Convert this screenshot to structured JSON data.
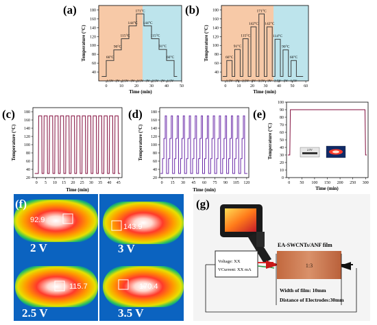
{
  "panels": {
    "a": {
      "label": "(a)"
    },
    "b": {
      "label": "(b)"
    },
    "c": {
      "label": "(c)"
    },
    "d": {
      "label": "(d)"
    },
    "e": {
      "label": "(e)"
    },
    "f": {
      "label": "(f)"
    },
    "g": {
      "label": "(g)"
    }
  },
  "chart_data": [
    {
      "panel": "a",
      "type": "line",
      "xlabel": "Time (min)",
      "ylabel": "Temperature (°C)",
      "xlim": [
        -5,
        50
      ],
      "ylim": [
        20,
        190
      ],
      "xticks": [
        0,
        10,
        20,
        30,
        40,
        50
      ],
      "yticks": [
        40,
        60,
        80,
        100,
        120,
        140,
        160,
        180
      ],
      "steps": [
        {
          "t0": 0,
          "t1": 5,
          "temp": 66,
          "label": "66°C",
          "volt": "1.5V"
        },
        {
          "t0": 5,
          "t1": 10,
          "temp": 90,
          "label": "90°C",
          "volt": "2V"
        },
        {
          "t0": 10,
          "t1": 15,
          "temp": 115,
          "label": "115°C",
          "volt": "2.5V"
        },
        {
          "t0": 15,
          "t1": 20,
          "temp": 144,
          "label": "144°C",
          "volt": "3V"
        },
        {
          "t0": 20,
          "t1": 25,
          "temp": 171,
          "label": "171°C",
          "volt": "3.5V"
        },
        {
          "t0": 25,
          "t1": 30,
          "temp": 144,
          "label": "144°C",
          "volt": "3V"
        },
        {
          "t0": 30,
          "t1": 35,
          "temp": 115,
          "label": "115°C",
          "volt": "2.5V"
        },
        {
          "t0": 35,
          "t1": 40,
          "temp": 91,
          "label": "91°C",
          "volt": "2V"
        },
        {
          "t0": 40,
          "t1": 45,
          "temp": 66,
          "label": "66°C",
          "volt": "1.5V"
        }
      ],
      "baseline": 30
    },
    {
      "panel": "b",
      "type": "line",
      "xlabel": "Time (min)",
      "ylabel": "Temperature (°C)",
      "xlim": [
        -3,
        62
      ],
      "ylim": [
        20,
        190
      ],
      "xticks": [
        0,
        10,
        20,
        30,
        40,
        50,
        60
      ],
      "yticks": [
        40,
        60,
        80,
        100,
        120,
        140,
        160,
        180
      ],
      "pulses": [
        {
          "t0": 1,
          "t1": 5,
          "temp": 66,
          "label": "66°C",
          "volt": "1.5V"
        },
        {
          "t0": 7,
          "t1": 11,
          "temp": 91,
          "label": "91°C",
          "volt": "2V"
        },
        {
          "t0": 13,
          "t1": 17,
          "temp": 115,
          "label": "115°C",
          "volt": "2.5V"
        },
        {
          "t0": 19,
          "t1": 23,
          "temp": 142,
          "label": "142°C",
          "volt": "3V"
        },
        {
          "t0": 25,
          "t1": 29,
          "temp": 171,
          "label": "171°C",
          "volt": "3.5V"
        },
        {
          "t0": 31,
          "t1": 35,
          "temp": 142,
          "label": "142°C",
          "volt": "3V"
        },
        {
          "t0": 37,
          "t1": 41,
          "temp": 114,
          "label": "114°C",
          "volt": "2.5V"
        },
        {
          "t0": 43,
          "t1": 47,
          "temp": 90,
          "label": "90°C",
          "volt": "2V"
        },
        {
          "t0": 49,
          "t1": 53,
          "temp": 66,
          "label": "66°C",
          "volt": "1.5V"
        }
      ],
      "baseline": 30
    },
    {
      "panel": "c",
      "type": "line",
      "xlabel": "Time (min)",
      "ylabel": "Temperature (°C)",
      "xlim": [
        -2,
        47
      ],
      "ylim": [
        20,
        190
      ],
      "xticks": [
        0,
        5,
        10,
        15,
        20,
        25,
        30,
        35,
        40,
        45
      ],
      "yticks": [
        20,
        40,
        60,
        80,
        100,
        120,
        140,
        160,
        180
      ],
      "cycle": {
        "count": 15,
        "start": 1,
        "period": 3,
        "high": 170,
        "low": 30
      }
    },
    {
      "panel": "d",
      "type": "line",
      "xlabel": "Time (min)",
      "ylabel": "Temperature (°C)",
      "xlim": [
        -3,
        123
      ],
      "ylim": [
        20,
        190
      ],
      "xticks": [
        0,
        15,
        30,
        45,
        60,
        75,
        90,
        105,
        120
      ],
      "yticks": [
        20,
        40,
        60,
        80,
        100,
        120,
        140,
        160,
        180
      ],
      "cycle": {
        "count": 14,
        "start": 1,
        "period": 8.5,
        "levels": [
          66,
          115,
          170
        ],
        "low": 30
      }
    },
    {
      "panel": "e",
      "type": "line",
      "xlabel": "Time (min)",
      "ylabel": "Temperature (°C)",
      "xlim": [
        -10,
        310
      ],
      "ylim": [
        0,
        100
      ],
      "xticks": [
        0,
        50,
        100,
        150,
        200,
        250,
        300
      ],
      "yticks": [
        0,
        10,
        20,
        30,
        40,
        50,
        60,
        70,
        80,
        90,
        100
      ],
      "plateau": {
        "t0": 5,
        "t1": 298,
        "temp": 90,
        "low": 30
      },
      "inset_label": "2.5V"
    }
  ],
  "thermal": {
    "tiles": [
      {
        "temp": "92.9",
        "voltage": "2 V"
      },
      {
        "temp": "143.9",
        "voltage": "3 V"
      },
      {
        "temp": "115.7",
        "voltage": "2.5 V"
      },
      {
        "temp": "170.4",
        "voltage": "3.5 V"
      }
    ]
  },
  "setup": {
    "film_title": "EA-SWCNTs/ANF film",
    "film_ratio": "1:3",
    "width_label": "Width of film: 10mm",
    "distance_label": "Distance of Electrodes:30mm",
    "supply_voltage": "Voltage: XX",
    "supply_current": "VCurrent: XX mA"
  }
}
